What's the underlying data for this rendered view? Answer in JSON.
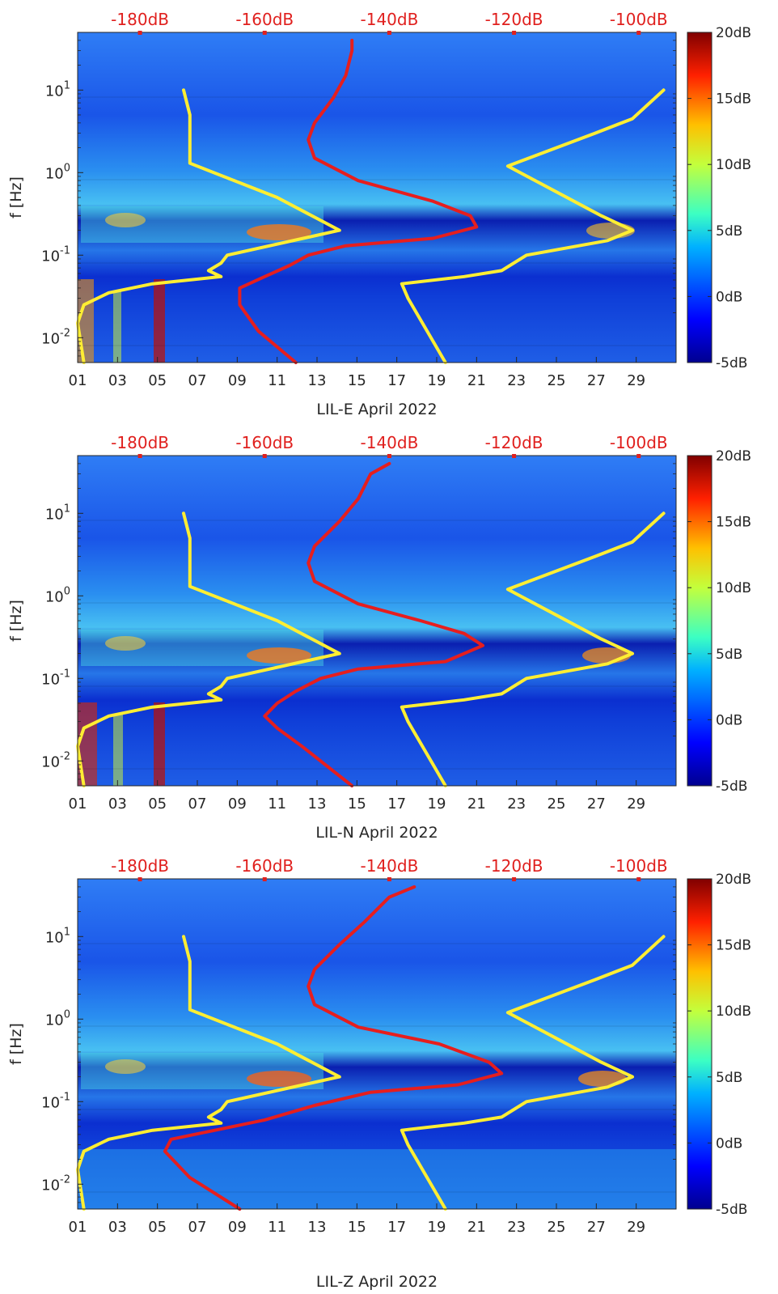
{
  "chart_data": [
    {
      "type": "heatmap",
      "title": "",
      "xlabel": "LIL-E April 2022",
      "ylabel": "f [Hz]",
      "x_ticks": [
        "01",
        "03",
        "05",
        "07",
        "09",
        "11",
        "13",
        "15",
        "17",
        "19",
        "21",
        "23",
        "25",
        "27",
        "29"
      ],
      "x_range_days": [
        1,
        31
      ],
      "y_ticks": [
        "10-2",
        "10-1",
        "100",
        "101"
      ],
      "y_range_hz": [
        0.005,
        50
      ],
      "top_axis_ticks": [
        "-180dB",
        "-160dB",
        "-140dB",
        "-120dB",
        "-100dB"
      ],
      "top_axis_range_db": [
        -190,
        -94
      ],
      "colorbar_ticks": [
        "20dB",
        "15dB",
        "10dB",
        "5dB",
        "0dB",
        "-5dB"
      ],
      "colorbar_range_db": [
        -5,
        20
      ],
      "curves": [
        {
          "name": "yellow model",
          "color": "#ffee33",
          "points_db_hz": [
            [
              -189,
              0.005
            ],
            [
              -190,
              0.015
            ],
            [
              -189,
              0.025
            ],
            [
              -185,
              0.035
            ],
            [
              -178,
              0.045
            ],
            [
              -167,
              0.055
            ],
            [
              -169,
              0.065
            ],
            [
              -167,
              0.08
            ],
            [
              -166,
              0.1
            ],
            [
              -148,
              0.2
            ],
            [
              -158,
              0.5
            ],
            [
              -172,
              1.3
            ],
            [
              -172,
              5
            ],
            [
              -173,
              10
            ]
          ]
        },
        {
          "name": "red model",
          "color": "#e61e1e",
          "points_db_hz": [
            [
              -155,
              0.005
            ],
            [
              -161,
              0.012
            ],
            [
              -164,
              0.025
            ],
            [
              -164,
              0.04
            ],
            [
              -160,
              0.055
            ],
            [
              -156,
              0.075
            ],
            [
              -153,
              0.1
            ],
            [
              -147,
              0.13
            ],
            [
              -133,
              0.16
            ],
            [
              -126,
              0.22
            ],
            [
              -127,
              0.3
            ],
            [
              -133,
              0.45
            ],
            [
              -145,
              0.8
            ],
            [
              -152,
              1.5
            ],
            [
              -153,
              2.5
            ],
            [
              -152,
              4
            ],
            [
              -149,
              8
            ],
            [
              -147,
              15
            ],
            [
              -146,
              30
            ],
            [
              -146,
              40
            ]
          ]
        },
        {
          "name": "yellow model 2",
          "color": "#ffee33",
          "points_db_hz": [
            [
              -131,
              0.005
            ],
            [
              -137,
              0.03
            ],
            [
              -138,
              0.045
            ],
            [
              -128,
              0.055
            ],
            [
              -122,
              0.065
            ],
            [
              -118,
              0.1
            ],
            [
              -105,
              0.15
            ],
            [
              -101,
              0.2
            ],
            [
              -106,
              0.3
            ],
            [
              -121,
              1.2
            ],
            [
              -107,
              3
            ],
            [
              -101,
              4.5
            ],
            [
              -96,
              10
            ]
          ]
        }
      ]
    },
    {
      "type": "heatmap",
      "title": "",
      "xlabel": "LIL-N April 2022",
      "ylabel": "f [Hz]",
      "x_ticks": [
        "01",
        "03",
        "05",
        "07",
        "09",
        "11",
        "13",
        "15",
        "17",
        "19",
        "21",
        "23",
        "25",
        "27",
        "29"
      ],
      "x_range_days": [
        1,
        31
      ],
      "y_ticks": [
        "10-2",
        "10-1",
        "100",
        "101"
      ],
      "y_range_hz": [
        0.005,
        50
      ],
      "top_axis_ticks": [
        "-180dB",
        "-160dB",
        "-140dB",
        "-120dB",
        "-100dB"
      ],
      "top_axis_range_db": [
        -190,
        -94
      ],
      "colorbar_ticks": [
        "20dB",
        "15dB",
        "10dB",
        "5dB",
        "0dB",
        "-5dB"
      ],
      "colorbar_range_db": [
        -5,
        20
      ],
      "curves": [
        {
          "name": "yellow model",
          "color": "#ffee33",
          "points_db_hz": [
            [
              -189,
              0.005
            ],
            [
              -190,
              0.015
            ],
            [
              -189,
              0.025
            ],
            [
              -185,
              0.035
            ],
            [
              -178,
              0.045
            ],
            [
              -167,
              0.055
            ],
            [
              -169,
              0.065
            ],
            [
              -167,
              0.08
            ],
            [
              -166,
              0.1
            ],
            [
              -148,
              0.2
            ],
            [
              -158,
              0.5
            ],
            [
              -172,
              1.3
            ],
            [
              -172,
              5
            ],
            [
              -173,
              10
            ]
          ]
        },
        {
          "name": "red model",
          "color": "#e61e1e",
          "points_db_hz": [
            [
              -146,
              0.005
            ],
            [
              -154,
              0.015
            ],
            [
              -158,
              0.025
            ],
            [
              -160,
              0.035
            ],
            [
              -158,
              0.05
            ],
            [
              -155,
              0.07
            ],
            [
              -151,
              0.1
            ],
            [
              -145,
              0.13
            ],
            [
              -131,
              0.16
            ],
            [
              -125,
              0.25
            ],
            [
              -128,
              0.35
            ],
            [
              -135,
              0.5
            ],
            [
              -145,
              0.8
            ],
            [
              -152,
              1.5
            ],
            [
              -153,
              2.5
            ],
            [
              -152,
              4
            ],
            [
              -148,
              8
            ],
            [
              -145,
              15
            ],
            [
              -143,
              30
            ],
            [
              -140,
              40
            ]
          ]
        },
        {
          "name": "yellow model 2",
          "color": "#ffee33",
          "points_db_hz": [
            [
              -131,
              0.005
            ],
            [
              -137,
              0.03
            ],
            [
              -138,
              0.045
            ],
            [
              -128,
              0.055
            ],
            [
              -122,
              0.065
            ],
            [
              -118,
              0.1
            ],
            [
              -105,
              0.15
            ],
            [
              -101,
              0.2
            ],
            [
              -106,
              0.3
            ],
            [
              -121,
              1.2
            ],
            [
              -107,
              3
            ],
            [
              -101,
              4.5
            ],
            [
              -96,
              10
            ]
          ]
        }
      ]
    },
    {
      "type": "heatmap",
      "title": "",
      "xlabel": "LIL-Z April 2022",
      "ylabel": "f [Hz]",
      "x_ticks": [
        "01",
        "03",
        "05",
        "07",
        "09",
        "11",
        "13",
        "15",
        "17",
        "19",
        "21",
        "23",
        "25",
        "27",
        "29"
      ],
      "x_range_days": [
        1,
        31
      ],
      "y_ticks": [
        "10-2",
        "10-1",
        "100",
        "101"
      ],
      "y_range_hz": [
        0.005,
        50
      ],
      "top_axis_ticks": [
        "-180dB",
        "-160dB",
        "-140dB",
        "-120dB",
        "-100dB"
      ],
      "top_axis_range_db": [
        -190,
        -94
      ],
      "colorbar_ticks": [
        "20dB",
        "15dB",
        "10dB",
        "5dB",
        "0dB",
        "-5dB"
      ],
      "colorbar_range_db": [
        -5,
        20
      ],
      "curves": [
        {
          "name": "yellow model",
          "color": "#ffee33",
          "points_db_hz": [
            [
              -189,
              0.005
            ],
            [
              -190,
              0.015
            ],
            [
              -189,
              0.025
            ],
            [
              -185,
              0.035
            ],
            [
              -178,
              0.045
            ],
            [
              -167,
              0.055
            ],
            [
              -169,
              0.065
            ],
            [
              -167,
              0.08
            ],
            [
              -166,
              0.1
            ],
            [
              -148,
              0.2
            ],
            [
              -158,
              0.5
            ],
            [
              -172,
              1.3
            ],
            [
              -172,
              5
            ],
            [
              -173,
              10
            ]
          ]
        },
        {
          "name": "red model",
          "color": "#e61e1e",
          "points_db_hz": [
            [
              -164,
              0.005
            ],
            [
              -172,
              0.012
            ],
            [
              -176,
              0.025
            ],
            [
              -175,
              0.035
            ],
            [
              -168,
              0.045
            ],
            [
              -160,
              0.06
            ],
            [
              -152,
              0.09
            ],
            [
              -143,
              0.13
            ],
            [
              -129,
              0.16
            ],
            [
              -122,
              0.22
            ],
            [
              -124,
              0.3
            ],
            [
              -132,
              0.5
            ],
            [
              -145,
              0.8
            ],
            [
              -152,
              1.5
            ],
            [
              -153,
              2.5
            ],
            [
              -152,
              4
            ],
            [
              -148,
              8
            ],
            [
              -144,
              15
            ],
            [
              -140,
              30
            ],
            [
              -136,
              40
            ]
          ]
        },
        {
          "name": "yellow model 2",
          "color": "#ffee33",
          "points_db_hz": [
            [
              -131,
              0.005
            ],
            [
              -137,
              0.03
            ],
            [
              -138,
              0.045
            ],
            [
              -128,
              0.055
            ],
            [
              -122,
              0.065
            ],
            [
              -118,
              0.1
            ],
            [
              -105,
              0.15
            ],
            [
              -101,
              0.2
            ],
            [
              -106,
              0.3
            ],
            [
              -121,
              1.2
            ],
            [
              -107,
              3
            ],
            [
              -101,
              4.5
            ],
            [
              -96,
              10
            ]
          ]
        }
      ]
    }
  ],
  "colors": {
    "top_axis_text": "#e0201e",
    "axis_text": "#262626",
    "colormap": [
      "#00008f",
      "#0000ff",
      "#00b0ff",
      "#3cffc3",
      "#c3ff3c",
      "#ffc000",
      "#ff2000",
      "#800000"
    ]
  }
}
